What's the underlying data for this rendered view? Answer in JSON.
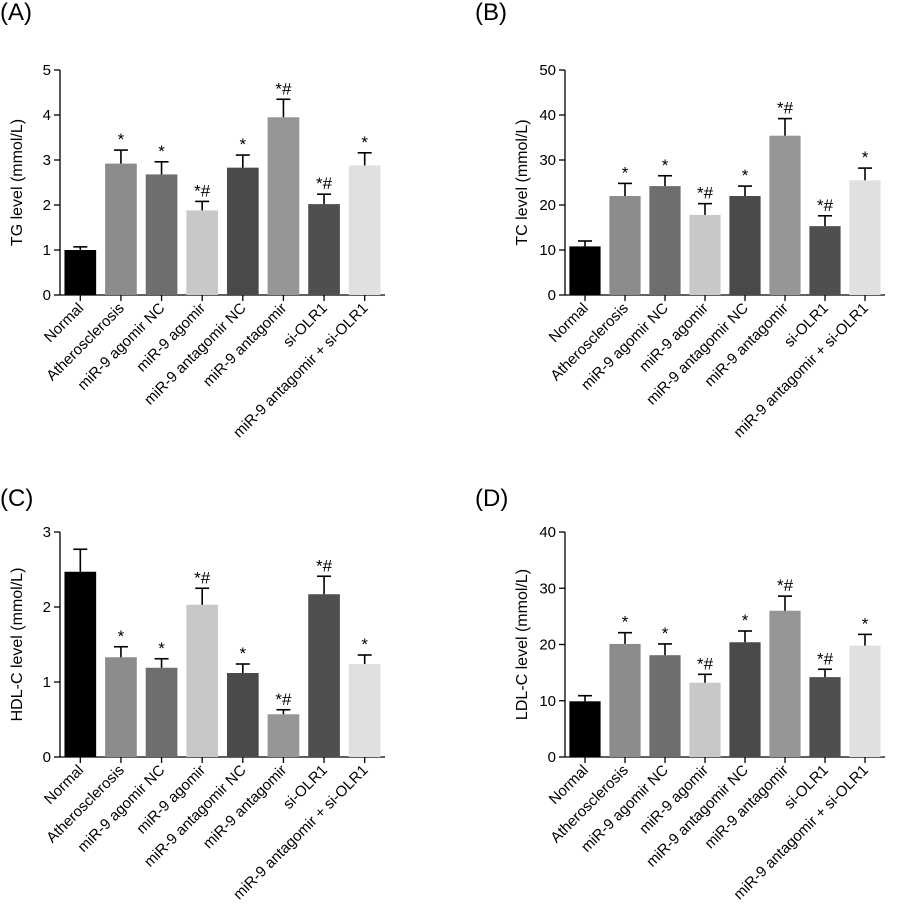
{
  "chart_data": [
    {
      "panel_label": "(A)",
      "type": "bar",
      "ylabel": "TG level (mmol/L)",
      "ylim": [
        0,
        5
      ],
      "yticks": [
        0,
        1,
        2,
        3,
        4,
        5
      ],
      "categories": [
        "Normal",
        "Atherosclerosis",
        "miR-9 agomir NC",
        "miR-9 agomir",
        "miR-9 antagomir NC",
        "miR-9 antagomir",
        "si-OLR1",
        "miR-9 antagomir + si-OLR1"
      ],
      "values": [
        1.0,
        2.92,
        2.68,
        1.88,
        2.83,
        3.95,
        2.02,
        2.88
      ],
      "errors": [
        0.07,
        0.3,
        0.28,
        0.2,
        0.28,
        0.4,
        0.22,
        0.28
      ],
      "annotations": [
        "",
        "*",
        "*",
        "*#",
        "*",
        "*#",
        "*#",
        "*"
      ],
      "colors": [
        "#000000",
        "#8c8c8c",
        "#6e6e6e",
        "#c8c8c8",
        "#4a4a4a",
        "#969696",
        "#4f4f4f",
        "#e0e0e0"
      ]
    },
    {
      "panel_label": "(B)",
      "type": "bar",
      "ylabel": "TC level (mmol/L)",
      "ylim": [
        0,
        50
      ],
      "yticks": [
        0,
        10,
        20,
        30,
        40,
        50
      ],
      "categories": [
        "Normal",
        "Atherosclerosis",
        "miR-9 agomir NC",
        "miR-9 agomir",
        "miR-9 antagomir NC",
        "miR-9 antagomir",
        "si-OLR1",
        "miR-9 antagomir + si-OLR1"
      ],
      "values": [
        10.8,
        22.0,
        24.2,
        17.8,
        22.0,
        35.4,
        15.3,
        25.5
      ],
      "errors": [
        1.2,
        2.8,
        2.3,
        2.5,
        2.2,
        3.8,
        2.3,
        2.7
      ],
      "annotations": [
        "",
        "*",
        "*",
        "*#",
        "*",
        "*#",
        "*#",
        "*"
      ],
      "colors": [
        "#000000",
        "#8c8c8c",
        "#6e6e6e",
        "#c8c8c8",
        "#4a4a4a",
        "#969696",
        "#4f4f4f",
        "#e0e0e0"
      ]
    },
    {
      "panel_label": "(C)",
      "type": "bar",
      "ylabel": "HDL-C level (mmol/L)",
      "ylim": [
        0,
        3
      ],
      "yticks": [
        0,
        1,
        2,
        3
      ],
      "categories": [
        "Normal",
        "Atherosclerosis",
        "miR-9 agomir NC",
        "miR-9 agomir",
        "miR-9 antagomir NC",
        "miR-9 antagomir",
        "si-OLR1",
        "miR-9 antagomir + si-OLR1"
      ],
      "values": [
        2.47,
        1.33,
        1.19,
        2.03,
        1.12,
        0.57,
        2.17,
        1.24
      ],
      "errors": [
        0.3,
        0.14,
        0.12,
        0.22,
        0.12,
        0.06,
        0.24,
        0.12
      ],
      "annotations": [
        "",
        "*",
        "*",
        "*#",
        "*",
        "*#",
        "*#",
        "*"
      ],
      "colors": [
        "#000000",
        "#8c8c8c",
        "#6e6e6e",
        "#c8c8c8",
        "#4a4a4a",
        "#969696",
        "#4f4f4f",
        "#e0e0e0"
      ]
    },
    {
      "panel_label": "(D)",
      "type": "bar",
      "ylabel": "LDL-C level (mmol/L)",
      "ylim": [
        0,
        40
      ],
      "yticks": [
        0,
        10,
        20,
        30,
        40
      ],
      "categories": [
        "Normal",
        "Atherosclerosis",
        "miR-9 agomir NC",
        "miR-9 agomir",
        "miR-9 antagomir NC",
        "miR-9 antagomir",
        "si-OLR1",
        "miR-9 antagomir + si-OLR1"
      ],
      "values": [
        9.9,
        20.1,
        18.1,
        13.2,
        20.4,
        26.0,
        14.2,
        19.8
      ],
      "errors": [
        1.0,
        2.0,
        2.0,
        1.5,
        2.0,
        2.6,
        1.4,
        2.0
      ],
      "annotations": [
        "",
        "*",
        "*",
        "*#",
        "*",
        "*#",
        "*#",
        "*"
      ],
      "colors": [
        "#000000",
        "#8c8c8c",
        "#6e6e6e",
        "#c8c8c8",
        "#4a4a4a",
        "#969696",
        "#4f4f4f",
        "#e0e0e0"
      ]
    }
  ]
}
